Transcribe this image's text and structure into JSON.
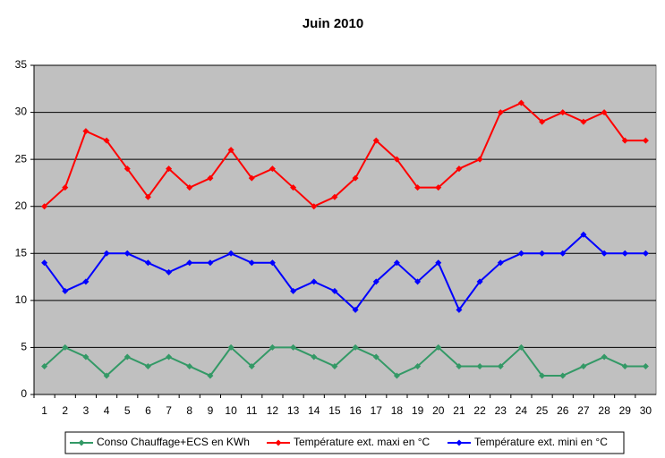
{
  "chart_data": {
    "type": "line",
    "title": "Juin 2010",
    "categories": [
      "1",
      "2",
      "3",
      "4",
      "5",
      "6",
      "7",
      "8",
      "9",
      "10",
      "11",
      "12",
      "13",
      "14",
      "15",
      "16",
      "17",
      "18",
      "19",
      "20",
      "21",
      "22",
      "23",
      "24",
      "25",
      "26",
      "27",
      "28",
      "29",
      "30"
    ],
    "series": [
      {
        "name": "Conso Chauffage+ECS en KWh",
        "color": "#339966",
        "values": [
          3,
          5,
          4,
          2,
          4,
          3,
          4,
          3,
          2,
          5,
          3,
          5,
          5,
          4,
          3,
          5,
          4,
          2,
          3,
          5,
          3,
          3,
          3,
          5,
          2,
          2,
          3,
          4,
          3,
          3
        ]
      },
      {
        "name": "Température ext. maxi en °C",
        "color": "#ff0000",
        "values": [
          20,
          22,
          28,
          27,
          24,
          21,
          24,
          22,
          23,
          26,
          23,
          24,
          22,
          20,
          21,
          23,
          27,
          25,
          22,
          22,
          24,
          25,
          30,
          31,
          29,
          30,
          29,
          30,
          27,
          27
        ]
      },
      {
        "name": "Température ext. mini en °C",
        "color": "#0000ff",
        "values": [
          14,
          11,
          12,
          15,
          15,
          14,
          13,
          14,
          14,
          15,
          14,
          14,
          11,
          12,
          11,
          9,
          12,
          14,
          12,
          14,
          9,
          12,
          14,
          15,
          15,
          15,
          17,
          15,
          15,
          15
        ]
      }
    ],
    "ylim": [
      0,
      35
    ],
    "yticks": [
      0,
      5,
      10,
      15,
      20,
      25,
      30,
      35
    ],
    "grid": true,
    "legend": "bottom"
  }
}
